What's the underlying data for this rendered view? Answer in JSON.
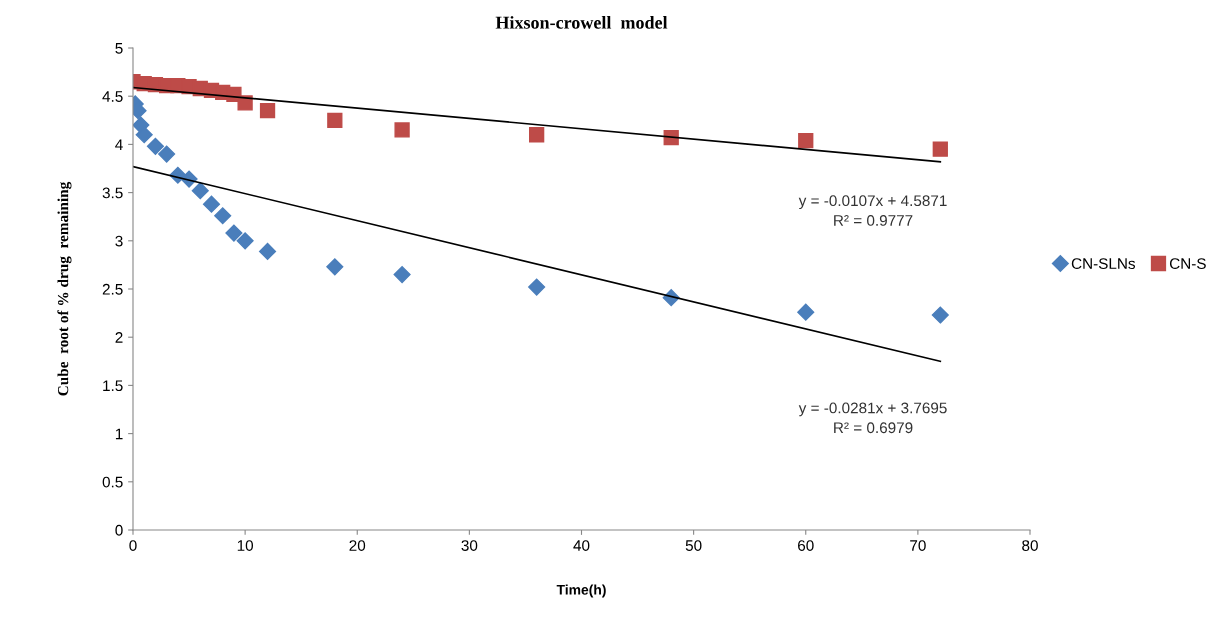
{
  "chart_data": {
    "type": "scatter",
    "title": "Hixson-crowell  model",
    "xlabel": "Time(h)",
    "ylabel": "Cube  root of % drug  remaining",
    "series": [
      {
        "name": "CN-SLNs",
        "marker": "diamond",
        "color": "#4a7ebb",
        "x": [
          0.2,
          0.45,
          0.7,
          1,
          2,
          3,
          4,
          5,
          6,
          7,
          8,
          9,
          10,
          12,
          18,
          24,
          36,
          48,
          60,
          72
        ],
        "values": [
          4.42,
          4.35,
          4.2,
          4.1,
          3.98,
          3.9,
          3.68,
          3.64,
          3.52,
          3.38,
          3.26,
          3.08,
          3.0,
          2.89,
          2.73,
          2.65,
          2.52,
          2.41,
          2.26,
          2.23
        ]
      },
      {
        "name": "CN-S",
        "marker": "square",
        "color": "#be4b48",
        "x": [
          0,
          1,
          2,
          3,
          4,
          5,
          6,
          7,
          8,
          9,
          10,
          12,
          18,
          24,
          36,
          48,
          60,
          72
        ],
        "values": [
          4.65,
          4.63,
          4.62,
          4.61,
          4.61,
          4.6,
          4.58,
          4.56,
          4.54,
          4.52,
          4.43,
          4.35,
          4.25,
          4.15,
          4.1,
          4.07,
          4.04,
          3.95
        ]
      },
      {
        "type": "line",
        "color": "#000000",
        "x": [
          0,
          72
        ],
        "values": [
          3.77,
          1.75
        ]
      },
      {
        "type": "line",
        "color": "#000000",
        "x": [
          0,
          72
        ],
        "values": [
          4.59,
          3.82
        ]
      }
    ],
    "annotations": [
      "y = -0.0107x + 4.5871\nR² = 0.9777",
      "y = -0.0281x + 3.7695\nR² = 0.6979"
    ],
    "xlim": [
      0,
      80
    ],
    "xticks": [
      0,
      10,
      20,
      30,
      40,
      50,
      60,
      70,
      80
    ],
    "ylim": [
      0,
      5
    ],
    "yticks": [
      0,
      0.5,
      1,
      1.5,
      2,
      2.5,
      3,
      3.5,
      4,
      4.5,
      5
    ],
    "grid": false,
    "legend": "right"
  }
}
